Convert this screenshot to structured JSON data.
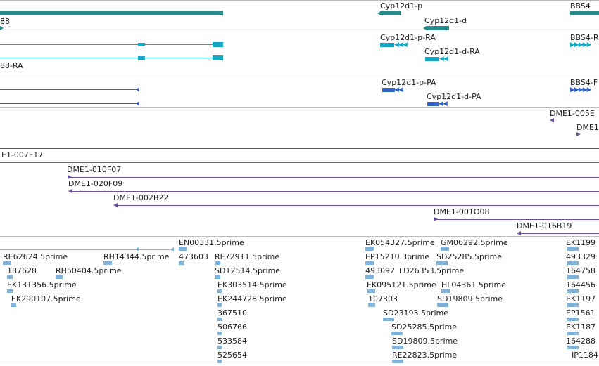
{
  "colors": {
    "gene": "#2a8a8a",
    "mrna_ncbi": "#14a7c4",
    "mrna_flybase": "#2f62c2",
    "bac": "#6a4fa3",
    "est": "#7fb3dc",
    "separator": "#bdbdbd"
  },
  "tracks": {
    "genes": {
      "labels": [
        "88",
        "Cyp12d1-p",
        "Cyp12d1-d",
        "BBS4"
      ]
    },
    "mrna_a": {
      "labels": [
        "88-RA",
        "Cyp12d1-p-RA",
        "Cyp12d1-d-RA",
        "BBS4-R"
      ]
    },
    "mrna_b": {
      "labels": [
        "Cyp12d1-p-PA",
        "Cyp12d1-d-PA",
        "BBS4-F"
      ]
    },
    "bac": {
      "labels": [
        "DME1-005E",
        "DME1",
        "E1-007F17",
        "DME1-010F07",
        "DME1-020F09",
        "DME1-002B22",
        "DME1-001O08",
        "DME1-016B19"
      ]
    },
    "est": {
      "labels": [
        "EN00331.5prime",
        "RE62624.5prime",
        "RH14344.5prime",
        "473603",
        "RE72911.5prime",
        "187628",
        "RH50404.5prime",
        "SD12514.5prime",
        "EK131356.5prime",
        "EK303514.5prime",
        "EK290107.5prime",
        "EK244728.5prime",
        "367510",
        "506766",
        "533584",
        "525654",
        "EK054327.5prime",
        "GM06292.5prime",
        "EP15210.3prime",
        "SD25285.5prime",
        "493092",
        "LD26353.5prime",
        "EK095121.5prime",
        "HL04361.5prime",
        "107303",
        "SD19809.5prime",
        "SD23193.5prime",
        "SD25285.5prime",
        "SD19809.5prime",
        "RE22823.5prime",
        "EK1199",
        "493329",
        "164758",
        "164456",
        "EK1197",
        "EP1561",
        "EK1187",
        "164288",
        "IP1184"
      ]
    }
  }
}
